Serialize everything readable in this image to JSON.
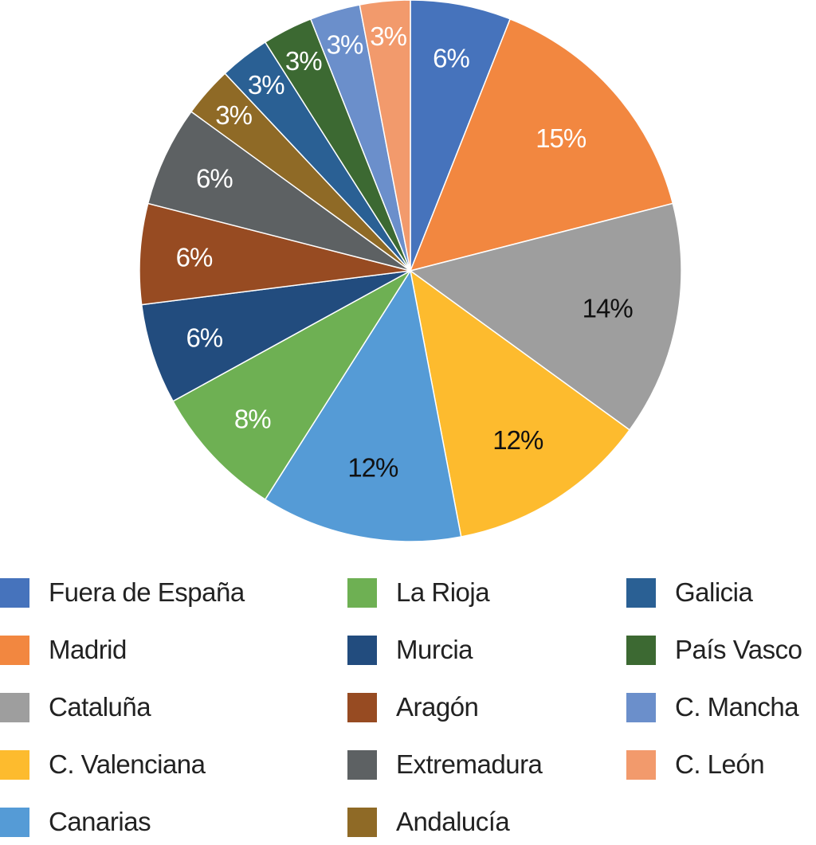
{
  "chart_data": {
    "type": "pie",
    "title": "",
    "legend_position": "bottom",
    "start_angle_deg": 0,
    "direction": "clockwise",
    "slices": [
      {
        "label": "Fuera de España",
        "value": 6,
        "display": "6%",
        "color": "#4673BC",
        "label_color": "#ffffff"
      },
      {
        "label": "Madrid",
        "value": 15,
        "display": "15%",
        "color": "#F28740",
        "label_color": "#ffffff"
      },
      {
        "label": "Cataluña",
        "value": 14,
        "display": "14%",
        "color": "#9E9E9E",
        "label_color": "#111111"
      },
      {
        "label": "C. Valenciana",
        "value": 12,
        "display": "12%",
        "color": "#FDBB2E",
        "label_color": "#111111"
      },
      {
        "label": "Canarias",
        "value": 12,
        "display": "12%",
        "color": "#559BD6",
        "label_color": "#111111"
      },
      {
        "label": "La Rioja",
        "value": 8,
        "display": "8%",
        "color": "#6EB053",
        "label_color": "#ffffff"
      },
      {
        "label": "Murcia",
        "value": 6,
        "display": "6%",
        "color": "#224C7E",
        "label_color": "#ffffff"
      },
      {
        "label": "Aragón",
        "value": 6,
        "display": "6%",
        "color": "#974B22",
        "label_color": "#ffffff"
      },
      {
        "label": "Extremadura",
        "value": 6,
        "display": "6%",
        "color": "#5D6163",
        "label_color": "#ffffff"
      },
      {
        "label": "Andalucía",
        "value": 3,
        "display": "3%",
        "color": "#8F6A26",
        "label_color": "#ffffff"
      },
      {
        "label": "Galicia",
        "value": 3,
        "display": "3%",
        "color": "#2A6094",
        "label_color": "#ffffff"
      },
      {
        "label": "País Vasco",
        "value": 3,
        "display": "3%",
        "color": "#3C6932",
        "label_color": "#ffffff"
      },
      {
        "label": "C. Mancha",
        "value": 3,
        "display": "3%",
        "color": "#6B8FCB",
        "label_color": "#ffffff"
      },
      {
        "label": "C. León",
        "value": 3,
        "display": "3%",
        "color": "#F29A6C",
        "label_color": "#ffffff"
      }
    ]
  }
}
